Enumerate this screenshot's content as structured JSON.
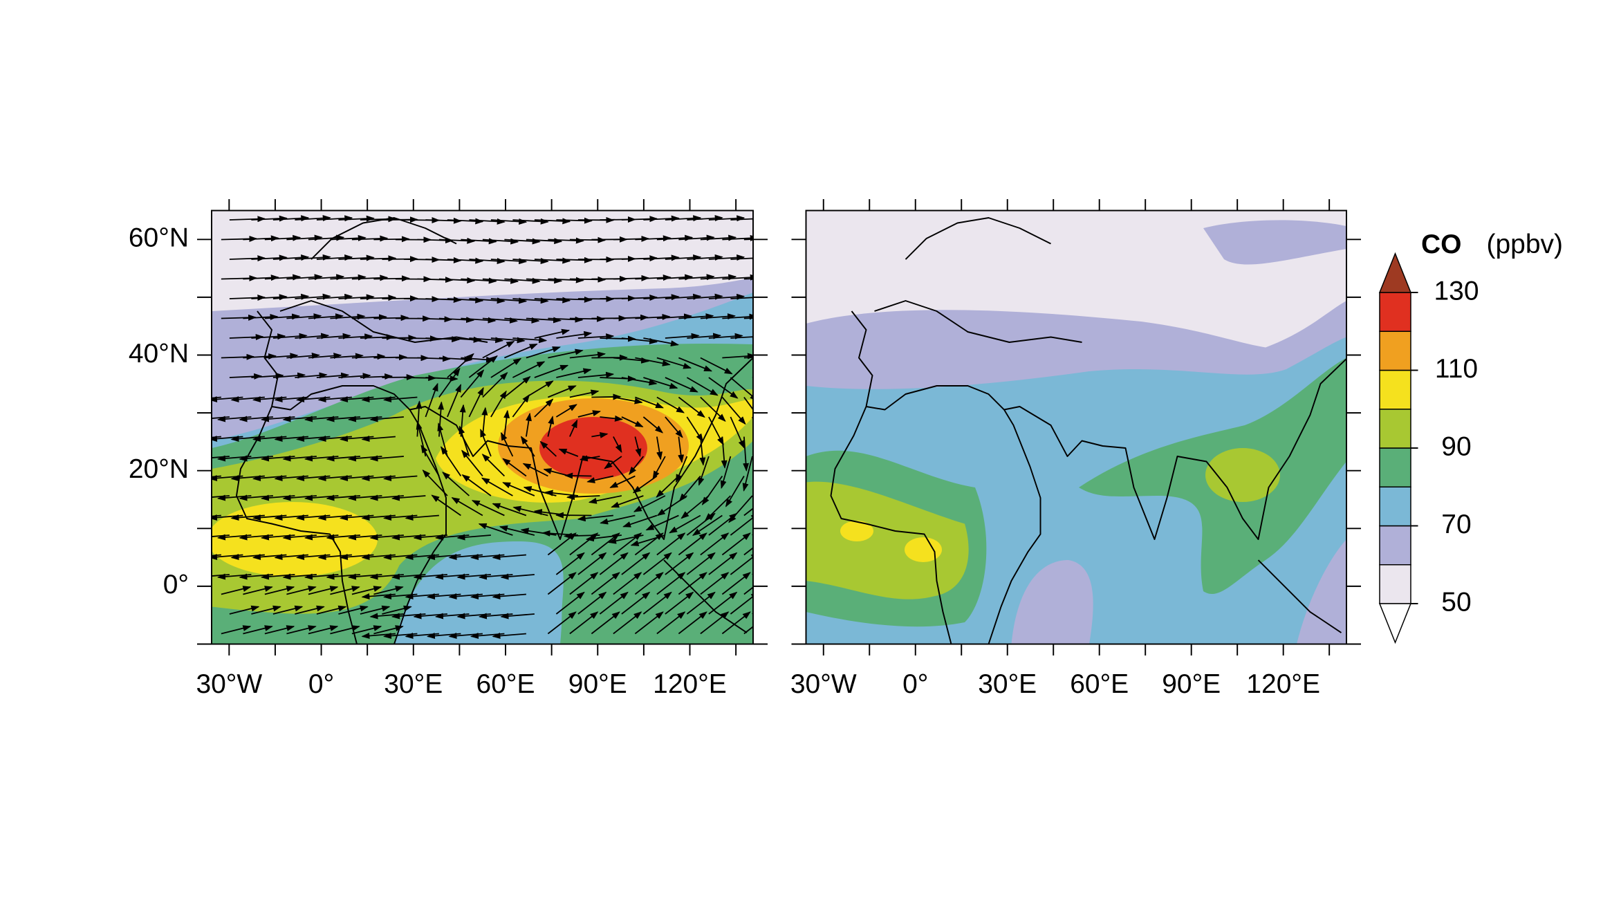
{
  "xlim": [
    -35.7,
    140.6
  ],
  "ylim": [
    -10,
    65
  ],
  "lon_ticks": [
    {
      "value": -30,
      "label": "30°W"
    },
    {
      "value": 0,
      "label": "0°"
    },
    {
      "value": 30,
      "label": "30°E"
    },
    {
      "value": 60,
      "label": "60°E"
    },
    {
      "value": 90,
      "label": "90°E"
    },
    {
      "value": 120,
      "label": "120°E"
    }
  ],
  "lon_minor_ticks": [
    -15,
    15,
    45,
    75,
    105,
    135
  ],
  "lat_ticks": [
    {
      "value": 60,
      "label": "60°N"
    },
    {
      "value": 40,
      "label": "40°N"
    },
    {
      "value": 20,
      "label": "20°N"
    },
    {
      "value": 0,
      "label": "0°"
    }
  ],
  "lat_minor_ticks": [
    -10,
    10,
    30,
    50
  ],
  "colorbar": {
    "title": "CO",
    "unit": "(ppbv)",
    "levels": [
      50,
      60,
      70,
      80,
      90,
      100,
      110,
      120,
      130
    ],
    "colors": [
      "#ebe6ee",
      "#b0b0d8",
      "#7bb8d6",
      "#5aaf78",
      "#a8c832",
      "#f5e11e",
      "#f0a020",
      "#e03020"
    ],
    "ticks": [
      50,
      70,
      90,
      110,
      130
    ],
    "max_color": "#9e3a22",
    "min_color": "#ffffff"
  }
}
